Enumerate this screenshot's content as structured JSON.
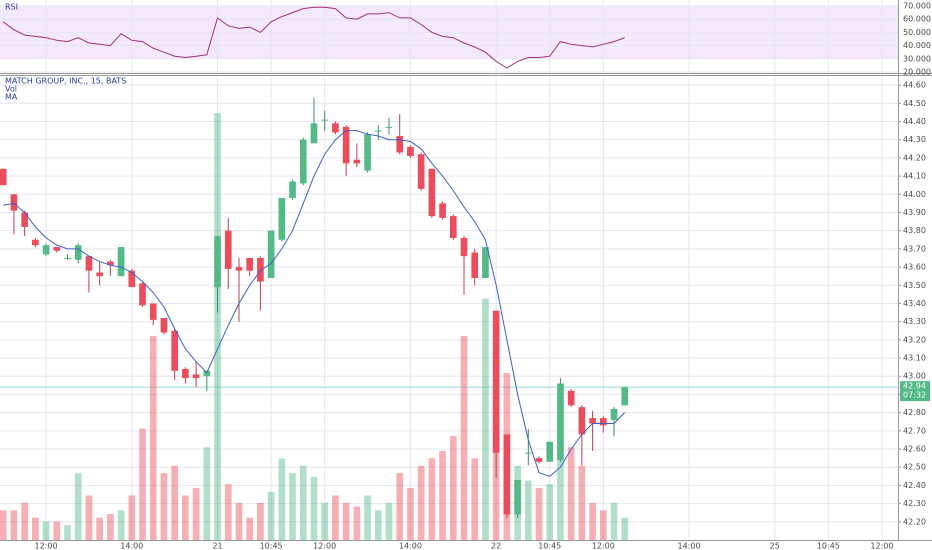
{
  "chart_data": {
    "type": "candlestick",
    "title": "MATCH GROUP, INC., 15, BATS",
    "volume_label": "Vol",
    "ma_label": "MA",
    "rsi_label": "RSI",
    "up_color": "#53b987",
    "down_color": "#eb4d5c",
    "ma_color": "#3d5fc4",
    "rsi_color": "#a0307a",
    "grid": true,
    "xlim": [
      -0.3,
      83.5
    ],
    "xticks": [
      {
        "value": 4,
        "label": "12:00"
      },
      {
        "value": 12,
        "label": "14:00"
      },
      {
        "value": 20,
        "label": "21"
      },
      {
        "value": 25,
        "label": "10:45"
      },
      {
        "value": 30,
        "label": "12:00"
      },
      {
        "value": 38,
        "label": "14:00"
      },
      {
        "value": 46,
        "label": "22"
      },
      {
        "value": 51,
        "label": "10:45"
      },
      {
        "value": 56,
        "label": "12:00"
      },
      {
        "value": 64,
        "label": "14:00"
      },
      {
        "value": 72,
        "label": "25"
      },
      {
        "value": 77,
        "label": "10:45"
      },
      {
        "value": 82,
        "label": "12:00"
      }
    ],
    "ylim": [
      42.1,
      44.65
    ],
    "yticks": [
      {
        "value": 42.2,
        "label": "42.20"
      },
      {
        "value": 42.3,
        "label": "42.30"
      },
      {
        "value": 42.4,
        "label": "42.40"
      },
      {
        "value": 42.5,
        "label": "42.50"
      },
      {
        "value": 42.6,
        "label": "42.60"
      },
      {
        "value": 42.7,
        "label": "42.70"
      },
      {
        "value": 42.8,
        "label": "42.80"
      },
      {
        "value": 42.9,
        "label": "42.90"
      },
      {
        "value": 43.0,
        "label": "43.00"
      },
      {
        "value": 43.1,
        "label": "43.10"
      },
      {
        "value": 43.2,
        "label": "43.20"
      },
      {
        "value": 43.3,
        "label": "43.30"
      },
      {
        "value": 43.4,
        "label": "43.40"
      },
      {
        "value": 43.5,
        "label": "43.50"
      },
      {
        "value": 43.6,
        "label": "43.60"
      },
      {
        "value": 43.7,
        "label": "43.70"
      },
      {
        "value": 43.8,
        "label": "43.80"
      },
      {
        "value": 43.9,
        "label": "43.90"
      },
      {
        "value": 44.0,
        "label": "44.00"
      },
      {
        "value": 44.1,
        "label": "44.10"
      },
      {
        "value": 44.2,
        "label": "44.20"
      },
      {
        "value": 44.3,
        "label": "44.30"
      },
      {
        "value": 44.4,
        "label": "44.40"
      },
      {
        "value": 44.5,
        "label": "44.50"
      },
      {
        "value": 44.6,
        "label": "44.60"
      }
    ],
    "last_price": {
      "value": 42.94,
      "label": "42.94"
    },
    "countdown": "07:32",
    "open": [
      44.14,
      44.0,
      43.9,
      43.75,
      43.67,
      43.71,
      43.65,
      43.64,
      43.66,
      43.57,
      43.63,
      43.55,
      43.58,
      43.51,
      43.4,
      43.32,
      43.25,
      43.04,
      43.01,
      43.0,
      43.49,
      43.8,
      43.6,
      43.65,
      43.65,
      43.54,
      43.75,
      43.98,
      44.06,
      44.28,
      44.41,
      44.39,
      44.37,
      44.19,
      44.13,
      44.35,
      44.37,
      44.32,
      44.26,
      44.22,
      44.14,
      43.95,
      43.88,
      43.76,
      43.68,
      43.54,
      43.36,
      42.68,
      42.24,
      42.58,
      42.55,
      42.53,
      42.54,
      42.92,
      42.83,
      42.77,
      42.77,
      42.76,
      42.84
    ],
    "high": [
      44.14,
      44.0,
      43.91,
      43.76,
      43.73,
      43.71,
      43.67,
      43.73,
      43.66,
      43.63,
      43.64,
      43.71,
      43.59,
      43.52,
      43.4,
      43.32,
      43.26,
      43.05,
      43.08,
      43.03,
      43.77,
      43.87,
      43.65,
      43.65,
      43.66,
      43.8,
      43.98,
      44.08,
      44.31,
      44.53,
      44.46,
      44.4,
      44.38,
      44.28,
      44.34,
      44.38,
      44.42,
      44.44,
      44.27,
      44.23,
      44.14,
      43.96,
      43.89,
      43.77,
      43.7,
      43.71,
      43.36,
      42.68,
      42.43,
      42.71,
      42.56,
      42.64,
      42.99,
      42.93,
      42.84,
      42.81,
      42.78,
      42.83,
      42.94
    ],
    "low": [
      44.05,
      43.78,
      43.77,
      43.71,
      43.66,
      43.68,
      43.64,
      43.62,
      43.46,
      43.5,
      43.55,
      43.55,
      43.49,
      43.38,
      43.28,
      43.23,
      42.98,
      42.96,
      42.94,
      42.92,
      43.35,
      43.48,
      43.3,
      43.55,
      43.36,
      43.54,
      43.74,
      43.97,
      44.05,
      44.28,
      44.35,
      44.33,
      44.1,
      44.15,
      44.12,
      44.3,
      44.33,
      44.22,
      44.2,
      44.02,
      43.87,
      43.86,
      43.75,
      43.45,
      43.5,
      43.54,
      42.44,
      42.22,
      42.22,
      42.51,
      42.52,
      42.53,
      42.53,
      42.83,
      42.51,
      42.59,
      42.69,
      42.67,
      42.84
    ],
    "close": [
      44.05,
      43.91,
      43.82,
      43.72,
      43.72,
      43.69,
      43.65,
      43.72,
      43.58,
      43.55,
      43.61,
      43.71,
      43.49,
      43.39,
      43.31,
      43.24,
      43.03,
      42.99,
      42.99,
      43.03,
      43.77,
      43.59,
      43.58,
      43.58,
      43.52,
      43.8,
      43.98,
      44.07,
      44.3,
      44.39,
      44.41,
      44.34,
      44.17,
      44.17,
      44.33,
      44.35,
      44.37,
      44.23,
      44.21,
      44.03,
      43.88,
      43.87,
      43.76,
      43.66,
      43.54,
      43.71,
      42.58,
      42.24,
      42.43,
      42.58,
      42.53,
      42.64,
      42.96,
      42.84,
      42.68,
      42.74,
      42.73,
      42.82,
      42.94
    ],
    "volume_ylim": [
      0,
      125
    ],
    "volume": [
      8,
      8,
      10,
      6,
      5,
      5,
      4,
      18,
      12,
      6,
      7,
      8,
      12,
      30,
      55,
      18,
      20,
      12,
      14,
      25,
      115,
      15,
      10,
      6,
      10,
      13,
      22,
      18,
      20,
      17,
      10,
      12,
      10,
      9,
      12,
      8,
      10,
      18,
      14,
      20,
      22,
      24,
      28,
      55,
      22,
      65,
      50,
      45,
      20,
      16,
      14,
      15,
      22,
      25,
      20,
      10,
      8,
      10,
      6
    ],
    "ma": [
      43.94,
      43.95,
      43.9,
      43.82,
      43.76,
      43.72,
      43.7,
      43.7,
      43.66,
      43.63,
      43.61,
      43.6,
      43.57,
      43.52,
      43.46,
      43.38,
      43.26,
      43.15,
      43.08,
      43.02,
      43.15,
      43.28,
      43.4,
      43.5,
      43.58,
      43.62,
      43.7,
      43.8,
      43.95,
      44.1,
      44.22,
      44.3,
      44.35,
      44.35,
      44.33,
      44.32,
      44.3,
      44.3,
      44.29,
      44.25,
      44.17,
      44.1,
      44.02,
      43.93,
      43.85,
      43.75,
      43.5,
      43.2,
      42.9,
      42.65,
      42.47,
      42.45,
      42.5,
      42.6,
      42.68,
      42.74,
      42.74,
      42.74,
      42.8
    ],
    "rsi": [
      58,
      52,
      48,
      47,
      46,
      44,
      43,
      46,
      42,
      41,
      40,
      49,
      44,
      43,
      38,
      35,
      32,
      31,
      32,
      33,
      61,
      55,
      53,
      54,
      50,
      58,
      62,
      65,
      68,
      69,
      69,
      68,
      61,
      60,
      64,
      64,
      65,
      61,
      61,
      56,
      50,
      47,
      46,
      42,
      39,
      35,
      28,
      23,
      28,
      31,
      31,
      32,
      43,
      41,
      40,
      39,
      41,
      43,
      46
    ],
    "rsi_ylim": [
      20,
      70
    ],
    "rsi_band": [
      30,
      70
    ],
    "rsi_yticks": [
      {
        "value": 70,
        "label": "70.000"
      },
      {
        "value": 60,
        "label": "60.000"
      },
      {
        "value": 50,
        "label": "50.000"
      },
      {
        "value": 40,
        "label": "40.000"
      },
      {
        "value": 30,
        "label": "30.000"
      },
      {
        "value": 20,
        "label": "20.000"
      }
    ]
  }
}
